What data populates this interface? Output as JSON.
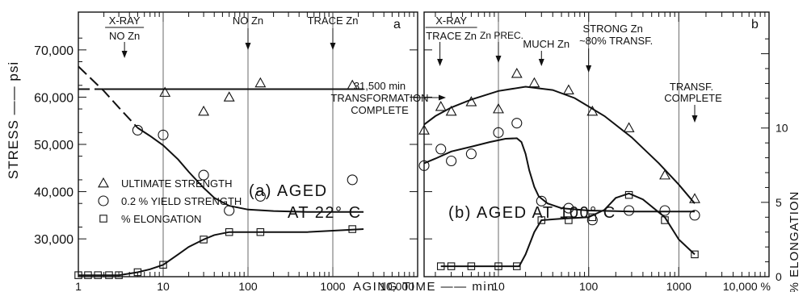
{
  "chart_data": [
    {
      "panel_id": "a",
      "type": "scatter",
      "panel_letter": "a",
      "panel_title_lines": [
        "(a) AGED",
        "AT 22° C"
      ],
      "xscale": "log",
      "xlim": [
        1,
        10000
      ],
      "ylabel": "STRESS —— psi",
      "ylim": [
        22000,
        78000
      ],
      "yticks": [
        30000,
        40000,
        50000,
        60000,
        70000
      ],
      "ytick_labels": [
        "30,000",
        "40,000",
        "50,000",
        "60,000",
        "70,000"
      ],
      "xticks": [
        1,
        10,
        100,
        1000,
        10000
      ],
      "xtick_labels": [
        "1",
        "10",
        "100",
        "1000",
        "10,000"
      ],
      "grid": false,
      "legend_position": "lower-left",
      "series": [
        {
          "name": "ULTIMATE STRENGTH",
          "marker": "triangle",
          "x": [
            10.5,
            30,
            60,
            140,
            1700
          ],
          "y": [
            61000,
            57000,
            60000,
            63000,
            62500
          ],
          "curve_x": [
            2,
            2300
          ],
          "curve_y": [
            61700,
            61700
          ]
        },
        {
          "name": "0.2 % YIELD STRENGTH",
          "marker": "circle",
          "x": [
            5,
            10,
            30,
            60,
            140,
            1700
          ],
          "y": [
            53000,
            52000,
            43500,
            36000,
            39000,
            42500
          ],
          "curve_x": [
            5,
            7,
            10,
            15,
            20,
            30,
            40,
            60,
            100,
            200,
            500,
            2300
          ],
          "curve_y": [
            53500,
            51800,
            49800,
            46800,
            44200,
            40800,
            38700,
            37000,
            36200,
            35900,
            35700,
            35700
          ],
          "dashed_x": [
            1,
            2,
            3,
            5
          ],
          "dashed_y": [
            66500,
            61300,
            57800,
            53500
          ]
        },
        {
          "name": "% ELONGATION",
          "marker": "square",
          "x": [
            1,
            1.3,
            1.7,
            2.3,
            3,
            5,
            10,
            30,
            60,
            140,
            1700
          ],
          "y": [
            0.1,
            0.1,
            0.1,
            0.1,
            0.1,
            0.3,
            0.8,
            2.5,
            3.0,
            3.0,
            3.2
          ],
          "curve_x": [
            1,
            3,
            5,
            7,
            10,
            15,
            20,
            30,
            40,
            60,
            100,
            500,
            2300
          ],
          "curve_y": [
            0.1,
            0.1,
            0.3,
            0.5,
            0.8,
            1.5,
            2.0,
            2.5,
            2.8,
            3.0,
            3.0,
            3.0,
            3.2
          ]
        }
      ],
      "vlines": [
        10,
        100,
        1000
      ],
      "annotations": [
        {
          "top": "X-RAY",
          "bottom": "NO Zn",
          "x": 3.5
        },
        {
          "text": "NO Zn",
          "x": 100
        },
        {
          "text": "TRACE Zn",
          "x": 1000
        }
      ]
    },
    {
      "panel_id": "b",
      "type": "scatter",
      "panel_letter": "b",
      "panel_title": "(b) AGED AT 100° C",
      "xscale": "log",
      "xlim": [
        1.5,
        10000
      ],
      "y2label": "% ELONGATION",
      "y2lim": [
        0,
        17.8
      ],
      "y2ticks": [
        0,
        5,
        10
      ],
      "y2tick_labels": [
        "0",
        "5",
        "10"
      ],
      "xticks": [
        10,
        100,
        1000,
        10000
      ],
      "xtick_labels": [
        "10",
        "100",
        "1000",
        "10,000 %"
      ],
      "grid": false,
      "series": [
        {
          "name": "ULTIMATE STRENGTH",
          "marker": "triangle",
          "x": [
            1.5,
            2.3,
            3,
            5,
            10,
            16,
            25,
            60,
            110,
            280,
            700,
            1500
          ],
          "y": [
            53000,
            58000,
            57000,
            59000,
            57500,
            65000,
            63000,
            61500,
            57000,
            53500,
            43500,
            38500
          ],
          "curve_x": [
            1.5,
            2,
            3,
            5,
            10,
            20,
            40,
            70,
            150,
            300,
            600,
            1000,
            1500
          ],
          "curve_y": [
            54200,
            56000,
            57800,
            59500,
            61300,
            62200,
            61500,
            59800,
            56000,
            51500,
            46000,
            41500,
            37500
          ]
        },
        {
          "name": "0.2 % YIELD STRENGTH",
          "marker": "circle",
          "x": [
            1.5,
            2.3,
            3,
            5,
            10,
            16,
            30,
            60,
            110,
            280,
            700,
            1500
          ],
          "y": [
            45500,
            49000,
            46500,
            48000,
            52500,
            54500,
            38000,
            36500,
            34000,
            36000,
            36000,
            35000
          ],
          "curve_x": [
            1.5,
            2,
            3,
            5,
            8,
            12,
            16,
            18,
            20,
            22,
            25,
            28,
            35,
            50,
            100,
            300,
            1000,
            1500
          ],
          "curve_y": [
            46000,
            47000,
            48500,
            49500,
            50500,
            51200,
            51300,
            50500,
            48000,
            44500,
            41000,
            39000,
            37500,
            36500,
            36000,
            35800,
            35800,
            35800
          ]
        },
        {
          "name": "% ELONGATION",
          "marker": "square",
          "x": [
            2.3,
            3,
            5,
            10,
            16,
            30,
            60,
            110,
            280,
            700,
            1500
          ],
          "y": [
            0.7,
            0.7,
            0.7,
            0.7,
            0.7,
            3.8,
            3.8,
            4.0,
            5.5,
            3.8,
            1.5
          ],
          "curve_x": [
            2.3,
            5,
            10,
            17,
            20,
            25,
            30,
            50,
            100,
            150,
            200,
            280,
            400,
            700,
            1000,
            1500
          ],
          "curve_y": [
            0.7,
            0.7,
            0.7,
            0.7,
            1.5,
            3.0,
            3.8,
            3.9,
            4.0,
            4.5,
            5.3,
            5.6,
            5.2,
            4.0,
            2.5,
            1.5
          ]
        }
      ],
      "vlines": [
        10,
        100,
        1000
      ],
      "annotations": [
        {
          "top": "X-RAY",
          "bottom": "TRACE Zn",
          "x": 3
        },
        {
          "text": "Zn PREC.",
          "x": 10
        },
        {
          "text": "MUCH Zn",
          "x": 30
        },
        {
          "lines": [
            "STRONG Zn",
            "~80% TRANSF."
          ],
          "x": 100
        },
        {
          "lines": [
            "TRANSF.",
            "COMPLETE"
          ],
          "x": 1500
        },
        {
          "lines": [
            "31,500 min",
            "TRANSFORMATION",
            "COMPLETE"
          ]
        }
      ]
    }
  ],
  "xlabel": "AGING TIME —— min"
}
